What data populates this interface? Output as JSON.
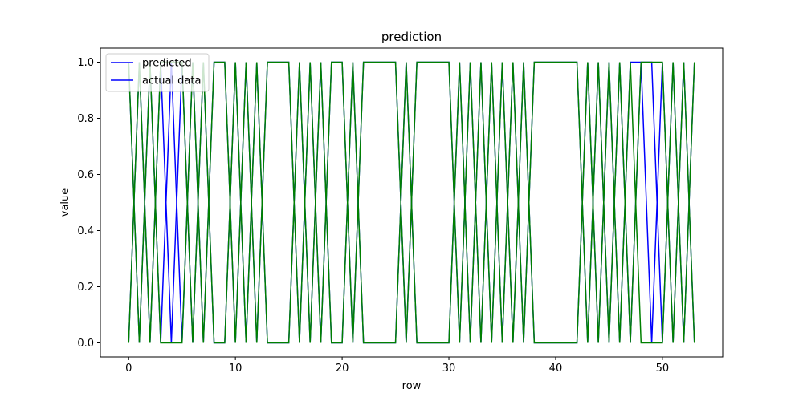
{
  "chart_data": {
    "type": "line",
    "title": "prediction",
    "xlabel": "row",
    "ylabel": "value",
    "xlim": [
      -2.65,
      55.65
    ],
    "ylim": [
      -0.05,
      1.05
    ],
    "xticks": [
      0,
      10,
      20,
      30,
      40,
      50
    ],
    "yticks": [
      0.0,
      0.2,
      0.4,
      0.6,
      0.8,
      1.0
    ],
    "xtick_labels": [
      "0",
      "10",
      "20",
      "30",
      "40",
      "50"
    ],
    "ytick_labels": [
      "0.0",
      "0.2",
      "0.4",
      "0.6",
      "0.8",
      "1.0"
    ],
    "grid": false,
    "legend_position": "top-left",
    "series": [
      {
        "name": "predicted",
        "color": "#0000ff",
        "x": [
          0,
          1,
          2,
          3,
          4,
          5,
          6,
          7,
          8,
          9,
          10,
          11,
          12,
          13,
          14,
          15,
          16,
          17,
          18,
          19,
          20,
          21,
          22,
          23,
          24,
          25,
          26,
          27,
          28,
          29,
          30,
          31,
          32,
          33,
          34,
          35,
          36,
          37,
          38,
          39,
          40,
          41,
          42,
          43,
          44,
          45,
          46,
          47,
          48,
          49,
          50,
          51,
          52,
          53
        ],
        "y": [
          1,
          0,
          1,
          0,
          1,
          0,
          1,
          0,
          1,
          1,
          0,
          1,
          0,
          1,
          1,
          1,
          0,
          1,
          0,
          1,
          1,
          0,
          1,
          1,
          1,
          1,
          0,
          1,
          1,
          1,
          1,
          0,
          1,
          0,
          1,
          0,
          1,
          0,
          1,
          1,
          1,
          1,
          1,
          0,
          1,
          0,
          1,
          0,
          1,
          0,
          1,
          0,
          1,
          0
        ]
      },
      {
        "name": "actual data",
        "color": "#0000ff",
        "x": [
          0,
          1,
          2,
          3,
          4,
          5,
          6,
          7,
          8,
          9,
          10,
          11,
          12,
          13,
          14,
          15,
          16,
          17,
          18,
          19,
          20,
          21,
          22,
          23,
          24,
          25,
          26,
          27,
          28,
          29,
          30,
          31,
          32,
          33,
          34,
          35,
          36,
          37,
          38,
          39,
          40,
          41,
          42,
          43,
          44,
          45,
          46,
          47,
          48,
          49,
          50,
          51,
          52,
          53
        ],
        "y": [
          0,
          1,
          0,
          1,
          0,
          1,
          0,
          1,
          0,
          0,
          1,
          0,
          1,
          0,
          0,
          0,
          1,
          0,
          1,
          0,
          0,
          1,
          0,
          0,
          0,
          0,
          1,
          0,
          0,
          0,
          0,
          1,
          0,
          1,
          0,
          1,
          0,
          1,
          0,
          0,
          0,
          0,
          0,
          1,
          0,
          1,
          0,
          1,
          1,
          1,
          0,
          1,
          0,
          1
        ]
      },
      {
        "name": "",
        "color": "#008000",
        "x": [
          0,
          1,
          2,
          3,
          4,
          5,
          6,
          7,
          8,
          9,
          10,
          11,
          12,
          13,
          14,
          15,
          16,
          17,
          18,
          19,
          20,
          21,
          22,
          23,
          24,
          25,
          26,
          27,
          28,
          29,
          30,
          31,
          32,
          33,
          34,
          35,
          36,
          37,
          38,
          39,
          40,
          41,
          42,
          43,
          44,
          45,
          46,
          47,
          48,
          49,
          50,
          51,
          52,
          53
        ],
        "y": [
          1,
          0,
          1,
          0,
          0,
          0,
          1,
          0,
          1,
          1,
          0,
          1,
          0,
          1,
          1,
          1,
          0,
          1,
          0,
          1,
          1,
          0,
          1,
          1,
          1,
          1,
          0,
          1,
          1,
          1,
          1,
          0,
          1,
          0,
          1,
          0,
          1,
          0,
          1,
          1,
          1,
          1,
          1,
          0,
          1,
          0,
          1,
          0,
          1,
          1,
          1,
          0,
          1,
          0
        ]
      },
      {
        "name": "",
        "color": "#008000",
        "x": [
          0,
          1,
          2,
          3,
          4,
          5,
          6,
          7,
          8,
          9,
          10,
          11,
          12,
          13,
          14,
          15,
          16,
          17,
          18,
          19,
          20,
          21,
          22,
          23,
          24,
          25,
          26,
          27,
          28,
          29,
          30,
          31,
          32,
          33,
          34,
          35,
          36,
          37,
          38,
          39,
          40,
          41,
          42,
          43,
          44,
          45,
          46,
          47,
          48,
          49,
          50,
          51,
          52,
          53
        ],
        "y": [
          0,
          1,
          0,
          1,
          1,
          1,
          0,
          1,
          0,
          0,
          1,
          0,
          1,
          0,
          0,
          0,
          1,
          0,
          1,
          0,
          0,
          1,
          0,
          0,
          0,
          0,
          1,
          0,
          0,
          0,
          0,
          1,
          0,
          1,
          0,
          1,
          0,
          1,
          0,
          0,
          0,
          0,
          0,
          1,
          0,
          1,
          0,
          1,
          0,
          0,
          0,
          1,
          0,
          1
        ]
      }
    ]
  }
}
